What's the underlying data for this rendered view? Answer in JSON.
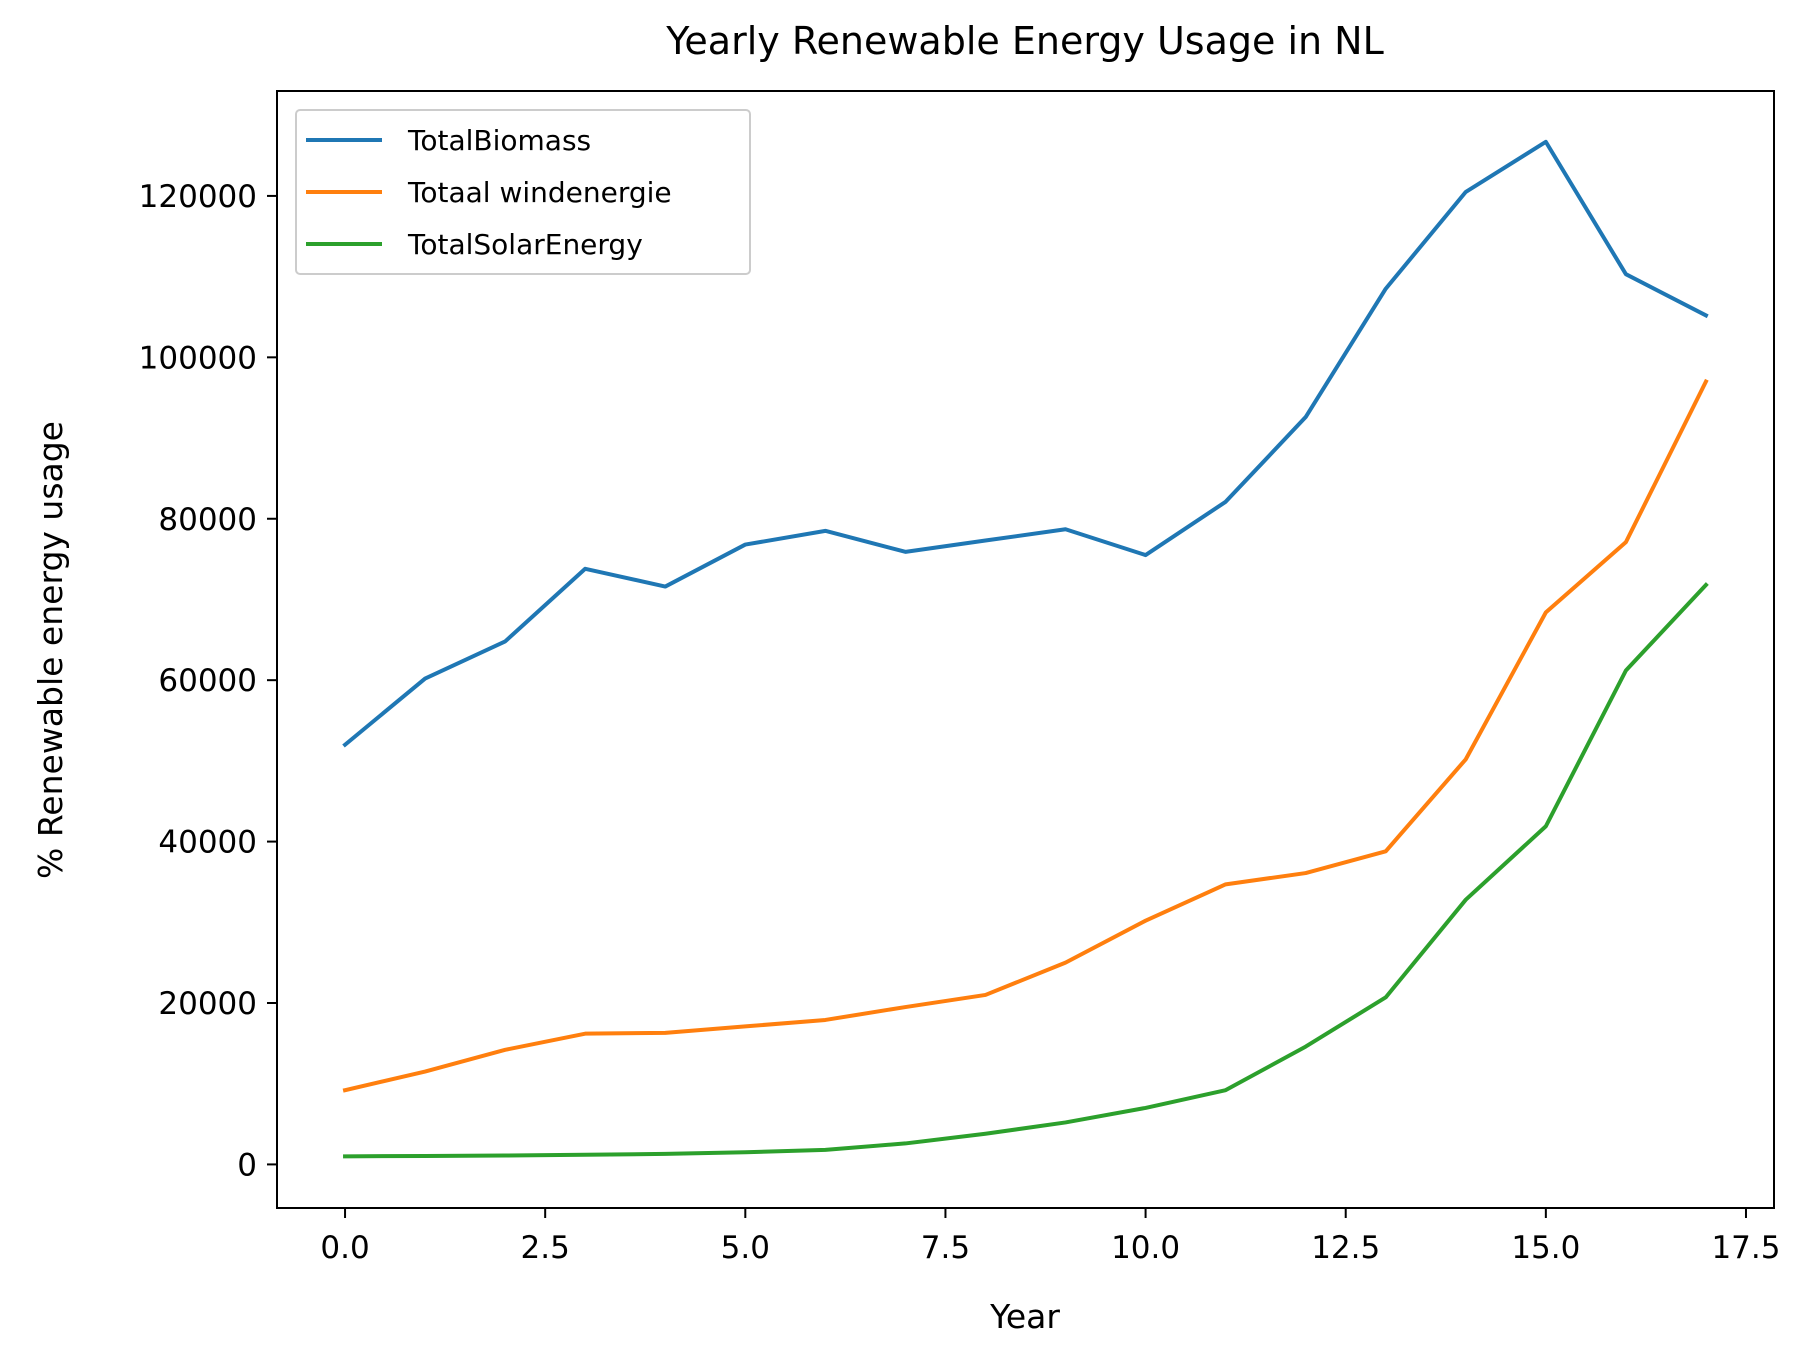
{
  "chart_data": {
    "type": "line",
    "title": "Yearly Renewable Energy Usage in NL",
    "xlabel": "Year",
    "ylabel": "% Renewable energy usage",
    "xlim": [
      -0.85,
      17.85
    ],
    "ylim": [
      -5400,
      133000
    ],
    "xticks": [
      0.0,
      2.5,
      5.0,
      7.5,
      10.0,
      12.5,
      15.0,
      17.5
    ],
    "xtick_labels": [
      "0.0",
      "2.5",
      "5.0",
      "7.5",
      "10.0",
      "12.5",
      "15.0",
      "17.5"
    ],
    "yticks": [
      0,
      20000,
      40000,
      60000,
      80000,
      100000,
      120000
    ],
    "ytick_labels": [
      "0",
      "20000",
      "40000",
      "60000",
      "80000",
      "100000",
      "120000"
    ],
    "grid": false,
    "legend_position": "upper-left",
    "x": [
      0,
      1,
      2,
      3,
      4,
      5,
      6,
      7,
      8,
      9,
      10,
      11,
      12,
      13,
      14,
      15,
      16,
      17
    ],
    "series": [
      {
        "name": "TotalBiomass",
        "color": "#1f77b4",
        "values": [
          52000,
          60200,
          64800,
          73800,
          71600,
          76800,
          78500,
          75900,
          77300,
          78700,
          75500,
          82100,
          92600,
          108500,
          120500,
          126700,
          110300,
          105200
        ]
      },
      {
        "name": "Totaal windenergie",
        "color": "#ff7f0e",
        "values": [
          9200,
          11500,
          14200,
          16200,
          16300,
          17100,
          17900,
          19500,
          21000,
          25000,
          30200,
          34700,
          36100,
          38800,
          50200,
          68400,
          77100,
          97000
        ]
      },
      {
        "name": "TotalSolarEnergy",
        "color": "#2ca02c",
        "values": [
          1000,
          1050,
          1100,
          1200,
          1300,
          1500,
          1800,
          2600,
          3800,
          5200,
          7000,
          9200,
          14600,
          20700,
          32800,
          41900,
          61200,
          71800
        ]
      }
    ]
  }
}
